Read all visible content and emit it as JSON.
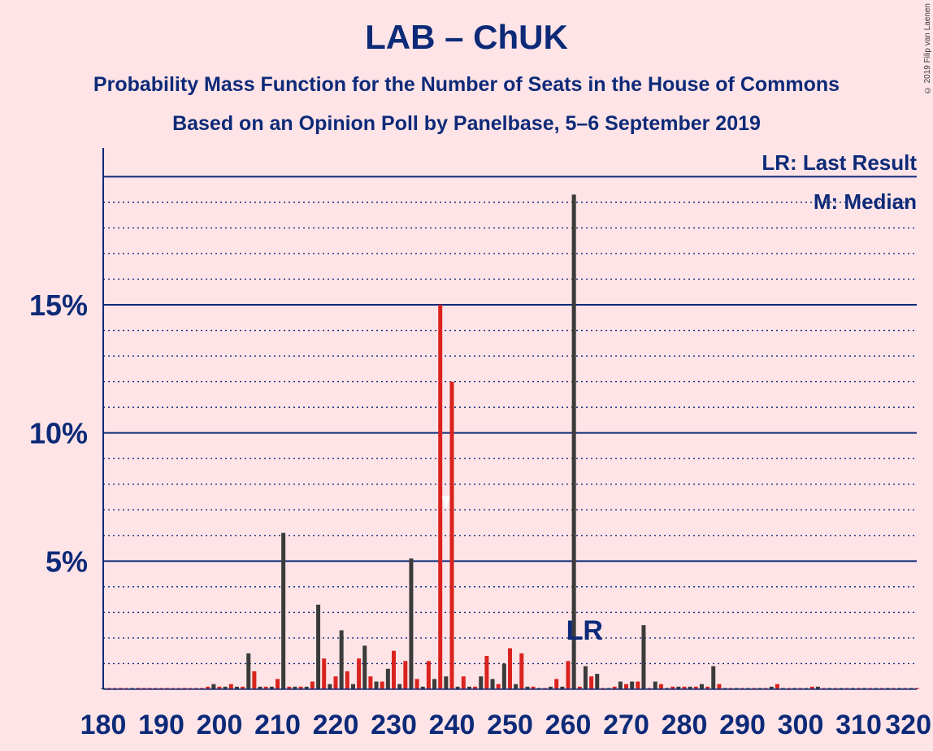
{
  "title": "LAB – ChUK",
  "subtitle": "Probability Mass Function for the Number of Seats in the House of Commons",
  "subtitle2": "Based on an Opinion Poll by Panelbase, 5–6 September 2019",
  "copyright": "© 2019 Filip van Laenen",
  "legend": {
    "last_result": "LR: Last Result",
    "median": "M: Median"
  },
  "colors": {
    "background": "#ffe4e7",
    "axis": "#0d2a78",
    "lab": "#d9231e",
    "chuk": "#3b3b3b"
  },
  "chart_data": {
    "type": "bar",
    "xlim": [
      180,
      320
    ],
    "ylim": [
      0,
      21
    ],
    "x_ticks": [
      180,
      190,
      200,
      210,
      220,
      230,
      240,
      250,
      260,
      270,
      280,
      290,
      300,
      310,
      320
    ],
    "y_ticks": [
      {
        "value": 5,
        "label": "5%"
      },
      {
        "value": 10,
        "label": "10%"
      },
      {
        "value": 15,
        "label": "15%"
      }
    ],
    "grid": "dotted every 1%, solid every 5%",
    "last_result": {
      "x": 262,
      "label": "LR"
    },
    "median": {
      "x": 239,
      "label": "M"
    },
    "series": [
      {
        "name": "LAB",
        "color": "#d9231e",
        "points": [
          [
            181,
            0
          ],
          [
            182,
            0
          ],
          [
            183,
            0
          ],
          [
            184,
            0
          ],
          [
            186,
            0.05
          ],
          [
            187,
            0
          ],
          [
            188,
            0
          ],
          [
            189,
            0
          ],
          [
            190,
            0
          ],
          [
            191,
            0
          ],
          [
            192,
            0
          ],
          [
            193,
            0
          ],
          [
            194,
            0
          ],
          [
            195,
            0
          ],
          [
            196,
            0
          ],
          [
            197,
            0
          ],
          [
            198,
            0.1
          ],
          [
            199,
            0.1
          ],
          [
            200,
            0.1
          ],
          [
            202,
            0.2
          ],
          [
            204,
            0.1
          ],
          [
            206,
            0.7
          ],
          [
            208,
            0.1
          ],
          [
            210,
            0.4
          ],
          [
            212,
            0.1
          ],
          [
            214,
            0.1
          ],
          [
            216,
            0.3
          ],
          [
            218,
            1.2
          ],
          [
            220,
            0.5
          ],
          [
            222,
            0.7
          ],
          [
            224,
            1.2
          ],
          [
            226,
            0.5
          ],
          [
            228,
            0.3
          ],
          [
            230,
            1.5
          ],
          [
            232,
            1.1
          ],
          [
            234,
            0.4
          ],
          [
            236,
            1.1
          ],
          [
            238,
            15
          ],
          [
            240,
            12
          ],
          [
            242,
            0.5
          ],
          [
            244,
            0.1
          ],
          [
            246,
            1.3
          ],
          [
            248,
            0.2
          ],
          [
            250,
            1.6
          ],
          [
            252,
            1.4
          ],
          [
            254,
            0.1
          ],
          [
            256,
            0
          ],
          [
            258,
            0.4
          ],
          [
            260,
            1.1
          ],
          [
            262,
            0.1
          ],
          [
            264,
            0.5
          ],
          [
            266,
            0
          ],
          [
            268,
            0.1
          ],
          [
            270,
            0.2
          ],
          [
            272,
            0.3
          ],
          [
            274,
            0
          ],
          [
            276,
            0.2
          ],
          [
            278,
            0.1
          ],
          [
            280,
            0.1
          ],
          [
            282,
            0.1
          ],
          [
            284,
            0.1
          ],
          [
            286,
            0.2
          ],
          [
            288,
            0
          ],
          [
            290,
            0
          ],
          [
            292,
            0
          ],
          [
            294,
            0
          ],
          [
            296,
            0.2
          ],
          [
            298,
            0
          ],
          [
            300,
            0
          ],
          [
            302,
            0.1
          ],
          [
            304,
            0
          ],
          [
            306,
            0
          ],
          [
            308,
            0
          ],
          [
            310,
            0
          ],
          [
            312,
            0
          ],
          [
            314,
            0
          ],
          [
            316,
            0
          ],
          [
            318,
            0
          ],
          [
            320,
            0
          ]
        ]
      },
      {
        "name": "ChUK",
        "color": "#3b3b3b",
        "points": [
          [
            180,
            0
          ],
          [
            185,
            0
          ],
          [
            199,
            0.2
          ],
          [
            201,
            0.1
          ],
          [
            203,
            0.1
          ],
          [
            205,
            1.4
          ],
          [
            207,
            0.1
          ],
          [
            209,
            0.1
          ],
          [
            211,
            6.1
          ],
          [
            213,
            0.1
          ],
          [
            215,
            0.1
          ],
          [
            217,
            3.3
          ],
          [
            219,
            0.2
          ],
          [
            221,
            2.3
          ],
          [
            223,
            0.2
          ],
          [
            225,
            1.7
          ],
          [
            227,
            0.3
          ],
          [
            229,
            0.8
          ],
          [
            231,
            0.2
          ],
          [
            233,
            5.1
          ],
          [
            235,
            0.1
          ],
          [
            237,
            0.4
          ],
          [
            239,
            0.5
          ],
          [
            241,
            0.1
          ],
          [
            243,
            0.1
          ],
          [
            245,
            0.5
          ],
          [
            247,
            0.4
          ],
          [
            249,
            1.0
          ],
          [
            251,
            0.2
          ],
          [
            253,
            0.1
          ],
          [
            255,
            0
          ],
          [
            257,
            0.1
          ],
          [
            259,
            0.1
          ],
          [
            261,
            19.3
          ],
          [
            263,
            0.9
          ],
          [
            265,
            0.6
          ],
          [
            267,
            0
          ],
          [
            269,
            0.3
          ],
          [
            271,
            0.3
          ],
          [
            273,
            2.5
          ],
          [
            275,
            0.3
          ],
          [
            277,
            0
          ],
          [
            279,
            0.1
          ],
          [
            281,
            0.1
          ],
          [
            283,
            0.2
          ],
          [
            285,
            0.9
          ],
          [
            287,
            0
          ],
          [
            289,
            0
          ],
          [
            291,
            0
          ],
          [
            293,
            0
          ],
          [
            295,
            0.1
          ],
          [
            297,
            0
          ],
          [
            299,
            0
          ],
          [
            301,
            0
          ],
          [
            303,
            0.1
          ],
          [
            305,
            0
          ],
          [
            307,
            0
          ],
          [
            309,
            0
          ],
          [
            311,
            0
          ],
          [
            313,
            0
          ],
          [
            315,
            0
          ],
          [
            317,
            0
          ],
          [
            319,
            0
          ]
        ]
      }
    ]
  }
}
